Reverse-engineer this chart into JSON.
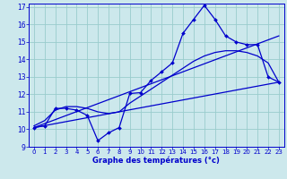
{
  "xlabel": "Graphe des températures (°c)",
  "xlim": [
    -0.5,
    23.5
  ],
  "ylim": [
    9,
    17.2
  ],
  "yticks": [
    9,
    10,
    11,
    12,
    13,
    14,
    15,
    16,
    17
  ],
  "xticks": [
    0,
    1,
    2,
    3,
    4,
    5,
    6,
    7,
    8,
    9,
    10,
    11,
    12,
    13,
    14,
    15,
    16,
    17,
    18,
    19,
    20,
    21,
    22,
    23
  ],
  "bg_color": "#cce8ec",
  "grid_color": "#99cccc",
  "line_color": "#0000cc",
  "main_line": {
    "x": [
      0,
      1,
      2,
      3,
      4,
      5,
      6,
      7,
      8,
      9,
      10,
      11,
      12,
      13,
      14,
      15,
      16,
      17,
      18,
      19,
      20,
      21,
      22,
      23
    ],
    "y": [
      10.1,
      10.2,
      11.2,
      11.2,
      11.1,
      10.8,
      9.35,
      9.8,
      10.1,
      12.05,
      12.1,
      12.8,
      13.3,
      13.8,
      15.5,
      16.3,
      17.1,
      16.3,
      15.35,
      15.0,
      14.85,
      14.85,
      13.0,
      12.7
    ]
  },
  "trend_line1": {
    "x": [
      0,
      23
    ],
    "y": [
      10.1,
      15.35
    ]
  },
  "trend_line2": {
    "x": [
      0,
      23
    ],
    "y": [
      10.1,
      12.7
    ]
  },
  "smooth_line": {
    "x": [
      0,
      1,
      2,
      3,
      4,
      5,
      6,
      7,
      8,
      9,
      10,
      11,
      12,
      13,
      14,
      15,
      16,
      17,
      18,
      19,
      20,
      21,
      22,
      23
    ],
    "y": [
      10.2,
      10.5,
      11.1,
      11.3,
      11.3,
      11.2,
      11.0,
      10.9,
      11.0,
      11.5,
      11.9,
      12.3,
      12.7,
      13.1,
      13.5,
      13.9,
      14.2,
      14.4,
      14.5,
      14.5,
      14.4,
      14.2,
      13.8,
      12.7
    ]
  }
}
